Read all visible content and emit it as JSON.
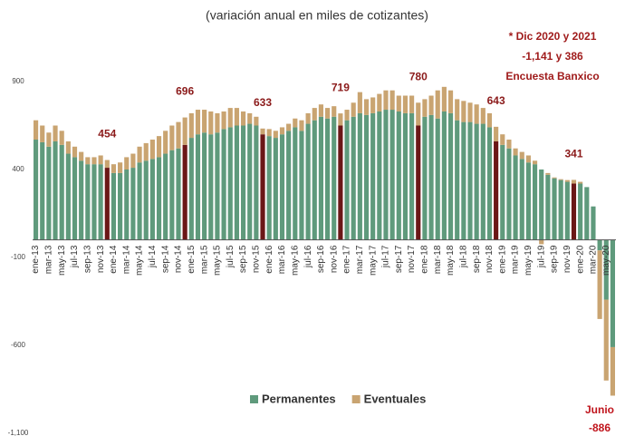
{
  "chart_data": {
    "type": "stacked_bar",
    "title": "(variación anual en miles de cotizantes)",
    "note": [
      "* Dic 2020 y 2021",
      "-1,141 y 386",
      "Encuesta Banxico"
    ],
    "footnote": [
      "Junio",
      "-886"
    ],
    "categories": [
      "ene-13",
      null,
      "mar-13",
      null,
      "may-13",
      null,
      "jul-13",
      null,
      "sep-13",
      null,
      "nov-13",
      null,
      "ene-14",
      null,
      "mar-14",
      null,
      "may-14",
      null,
      "jul-14",
      null,
      "sep-14",
      null,
      "nov-14",
      null,
      "ene-15",
      null,
      "mar-15",
      null,
      "may-15",
      null,
      "jul-15",
      null,
      "sep-15",
      null,
      "nov-15",
      null,
      "ene-16",
      null,
      "mar-16",
      null,
      "may-16",
      null,
      "jul-16",
      null,
      "sep-16",
      null,
      "nov-16",
      null,
      "ene-17",
      null,
      "mar-17",
      null,
      "may-17",
      null,
      "jul-17",
      null,
      "sep-17",
      null,
      "nov-17",
      null,
      "ene-18",
      null,
      "mar-18",
      null,
      "may-18",
      null,
      "jul-18",
      null,
      "sep-18",
      null,
      "nov-18",
      null,
      "ene-19",
      null,
      "mar-19",
      null,
      "may-19",
      null,
      "jul-19",
      null,
      "sep-19",
      null,
      "nov-19",
      null,
      "ene-20",
      null,
      "mar-20",
      null,
      "may-20",
      null
    ],
    "series": [
      {
        "name": "Permanentes",
        "color": "#5f9a7c",
        "values": [
          570,
          555,
          530,
          560,
          540,
          490,
          470,
          450,
          430,
          430,
          430,
          410,
          380,
          380,
          400,
          410,
          440,
          450,
          460,
          470,
          490,
          510,
          520,
          540,
          580,
          600,
          610,
          600,
          610,
          630,
          640,
          650,
          650,
          660,
          650,
          600,
          590,
          580,
          600,
          620,
          640,
          620,
          660,
          680,
          700,
          690,
          700,
          650,
          680,
          700,
          720,
          710,
          720,
          730,
          740,
          740,
          730,
          720,
          720,
          650,
          700,
          710,
          690,
          730,
          720,
          680,
          670,
          670,
          660,
          660,
          640,
          560,
          540,
          520,
          480,
          460,
          440,
          430,
          400,
          370,
          350,
          340,
          330,
          320,
          320,
          300,
          190,
          -60,
          -340,
          -610
        ]
      },
      {
        "name": "Eventuales",
        "color": "#c9a471",
        "values": [
          110,
          95,
          80,
          90,
          80,
          70,
          60,
          50,
          40,
          40,
          50,
          44,
          50,
          60,
          70,
          80,
          90,
          100,
          110,
          120,
          130,
          140,
          150,
          156,
          140,
          140,
          130,
          130,
          110,
          100,
          110,
          100,
          80,
          60,
          50,
          33,
          40,
          40,
          40,
          40,
          50,
          60,
          60,
          70,
          70,
          60,
          60,
          69,
          60,
          80,
          120,
          90,
          90,
          100,
          110,
          110,
          90,
          100,
          100,
          130,
          100,
          110,
          160,
          140,
          130,
          120,
          120,
          110,
          110,
          90,
          80,
          83,
          60,
          50,
          40,
          40,
          40,
          20,
          -25,
          10,
          5,
          5,
          10,
          21,
          10,
          0,
          0,
          -390,
          -460,
          -276
        ]
      }
    ],
    "highlight_color": "#6b1717",
    "annotations": [
      {
        "index": 11,
        "value": 454
      },
      {
        "index": 23,
        "value": 696
      },
      {
        "index": 35,
        "value": 633
      },
      {
        "index": 47,
        "value": 719
      },
      {
        "index": 59,
        "value": 780
      },
      {
        "index": 71,
        "value": 643
      },
      {
        "index": 83,
        "value": 341
      }
    ],
    "ylim": [
      -1100,
      900
    ],
    "yticks": [
      900,
      400,
      -100,
      -600,
      {
        "value": -1100,
        "label": "-1,100"
      }
    ],
    "legend": "bottom"
  }
}
